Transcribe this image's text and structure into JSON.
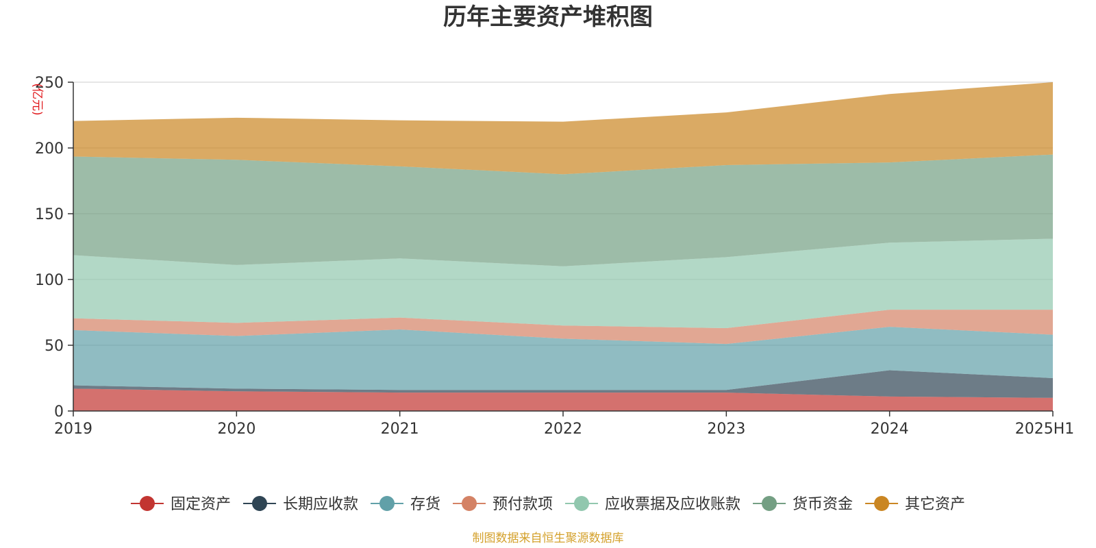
{
  "chart_data": {
    "type": "area",
    "stacked": true,
    "title": "历年主要资产堆积图",
    "unit_label": "(亿元)",
    "source": "制图数据来自恒生聚源数据库",
    "categories": [
      "2019",
      "2020",
      "2021",
      "2022",
      "2023",
      "2024",
      "2025H1"
    ],
    "y_ticks": [
      "0",
      "50",
      "100",
      "150",
      "200",
      "250"
    ],
    "ylim": [
      0,
      250
    ],
    "grid": true,
    "legend_position": "bottom",
    "series": [
      {
        "name": "固定资产",
        "color": "#c23531",
        "values": [
          17,
          15,
          14,
          14,
          14,
          11,
          10
        ]
      },
      {
        "name": "长期应收款",
        "color": "#2f4554",
        "values": [
          2.5,
          2,
          2,
          2,
          2,
          20,
          15
        ]
      },
      {
        "name": "存货",
        "color": "#61a0a8",
        "values": [
          42,
          40,
          46,
          39,
          35,
          33,
          33
        ]
      },
      {
        "name": "预付款项",
        "color": "#d48265",
        "values": [
          9,
          10,
          9,
          10,
          12,
          13,
          19
        ]
      },
      {
        "name": "应收票据及应收账款",
        "color": "#91c7ae",
        "values": [
          48,
          44,
          45,
          45,
          54,
          51,
          54
        ]
      },
      {
        "name": "货币资金",
        "color": "#749f83",
        "values": [
          75,
          80,
          70,
          70,
          70,
          61,
          64
        ]
      },
      {
        "name": "其它资产",
        "color": "#ca8622",
        "values": [
          27,
          32,
          35,
          40,
          40,
          52,
          55
        ]
      }
    ]
  }
}
